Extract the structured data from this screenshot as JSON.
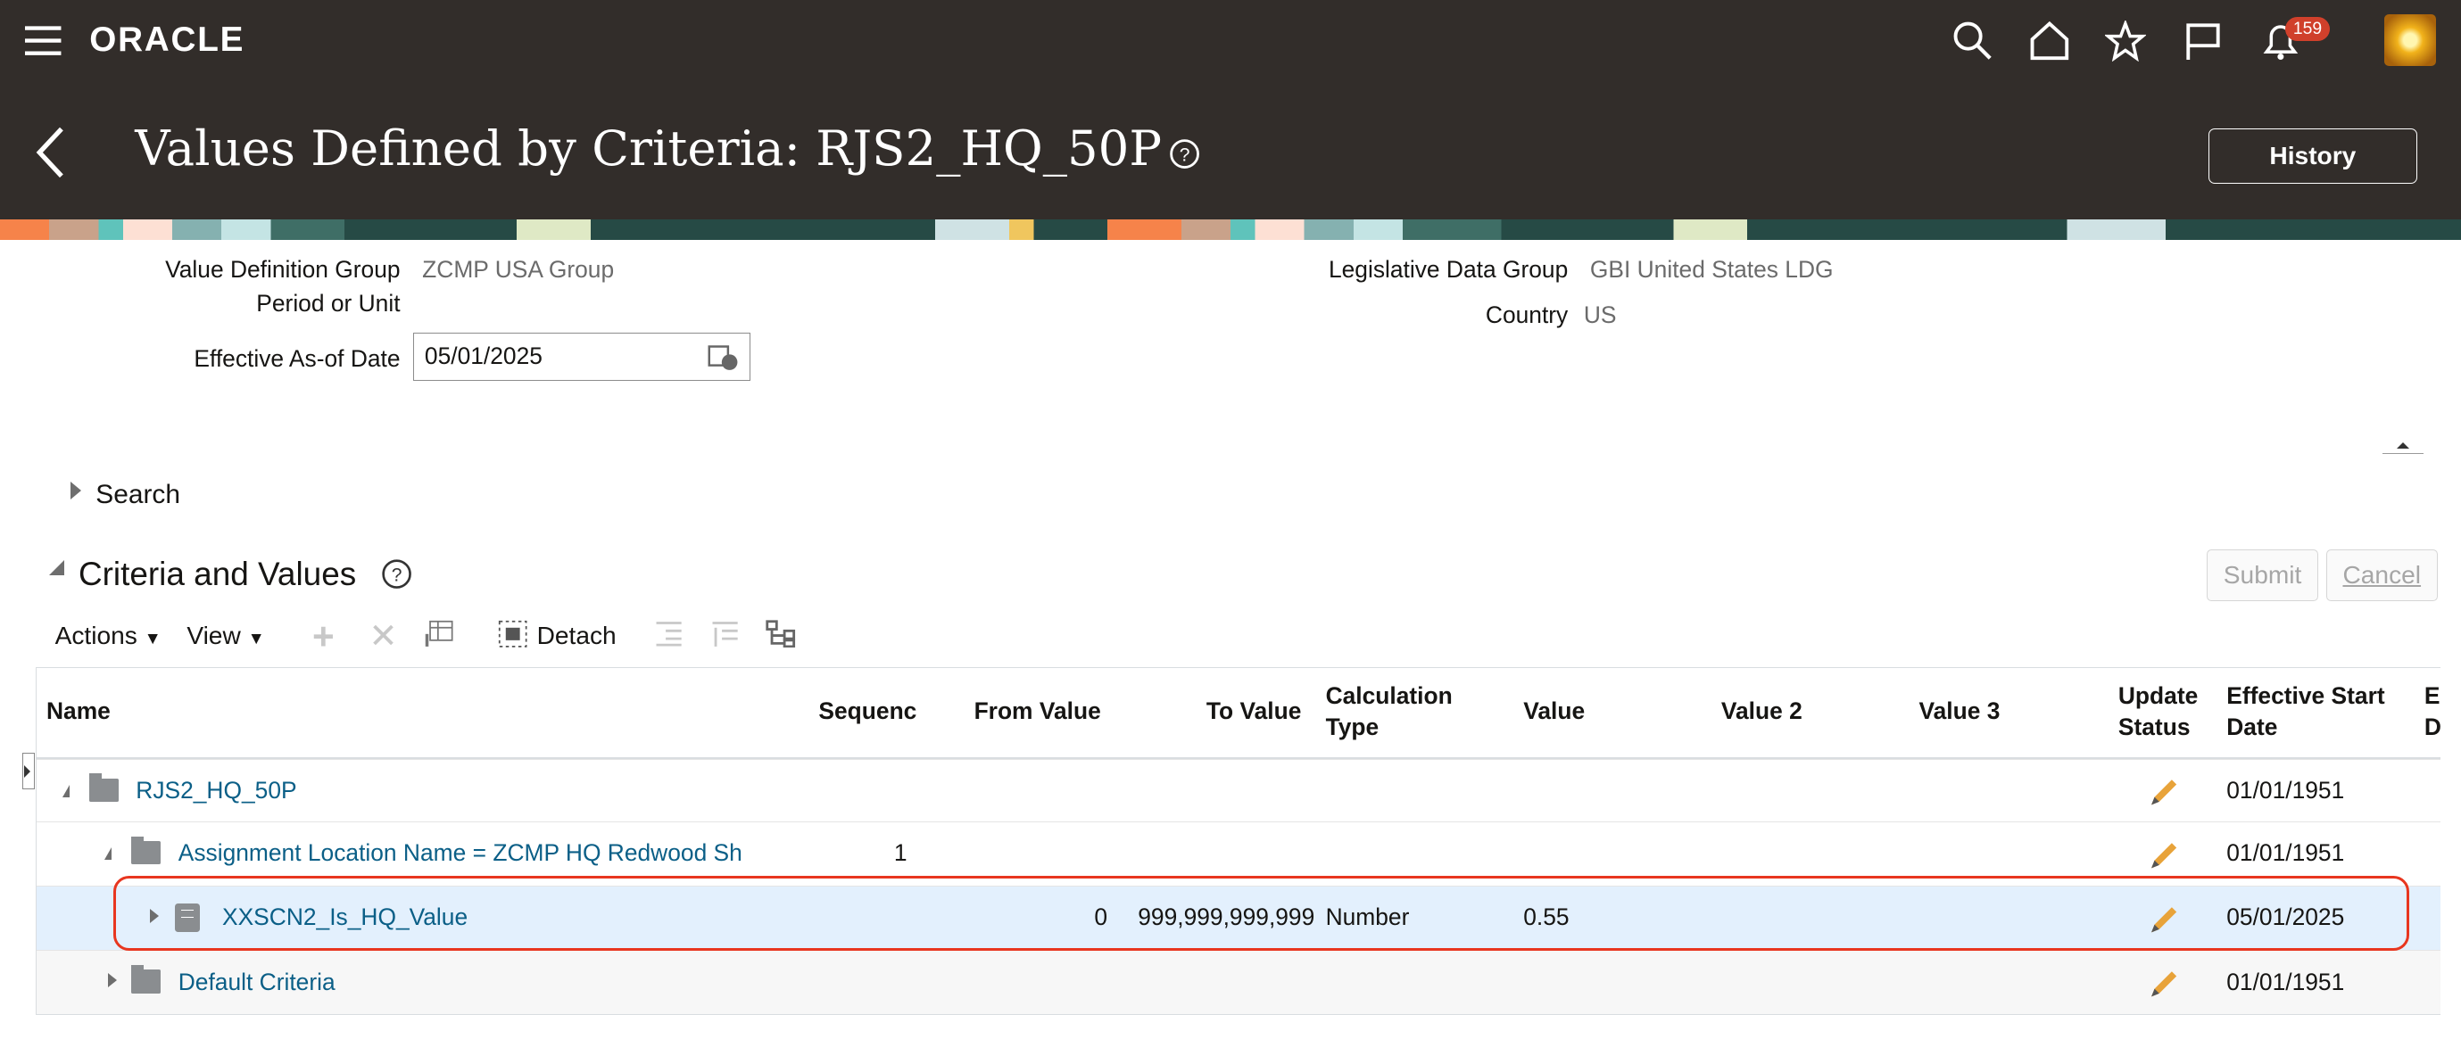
{
  "header": {
    "brand": "ORACLE",
    "notification_count": "159",
    "icons": [
      "menu-icon",
      "search-icon",
      "home-icon",
      "star-icon",
      "flag-icon",
      "bell-icon"
    ]
  },
  "page": {
    "title": "Values Defined by Criteria: RJS2_HQ_50P",
    "history_label": "History"
  },
  "form": {
    "value_definition_group_label": "Value Definition Group",
    "value_definition_group": "ZCMP USA Group",
    "period_or_unit_label": "Period or Unit",
    "effective_date_label": "Effective As-of Date",
    "effective_date": "05/01/2025",
    "ldg_label": "Legislative Data Group",
    "ldg": "GBI United States LDG",
    "country_label": "Country",
    "country": "US"
  },
  "search": {
    "label": "Search"
  },
  "section": {
    "title": "Criteria and Values",
    "submit": "Submit",
    "cancel": "Cancel"
  },
  "toolbar": {
    "actions": "Actions",
    "view": "View",
    "detach": "Detach"
  },
  "table": {
    "columns": [
      "Name",
      "Sequenc",
      "From Value",
      "To Value",
      "Calculation",
      "Type",
      "Value",
      "Value 2",
      "Value 3",
      "Update",
      "Status",
      "Effective Start",
      "Date",
      "E",
      "D"
    ],
    "rows": [
      {
        "name": "RJS2_HQ_50P",
        "sequence": "",
        "from": "",
        "to": "",
        "calc": "",
        "value": "",
        "start": "01/01/1951"
      },
      {
        "name": "Assignment Location Name = ZCMP HQ Redwood Sh",
        "sequence": "1",
        "from": "",
        "to": "",
        "calc": "",
        "value": "",
        "start": "01/01/1951"
      },
      {
        "name": "XXSCN2_Is_HQ_Value",
        "sequence": "",
        "from": "0",
        "to": "999,999,999,999",
        "calc": "Number",
        "value": "0.55",
        "start": "05/01/2025"
      },
      {
        "name": "Default Criteria",
        "sequence": "",
        "from": "",
        "to": "",
        "calc": "",
        "value": "",
        "start": "01/01/1951"
      }
    ],
    "selected_row": 2
  },
  "colors": {
    "header_bg": "#322d2a",
    "link": "#0b5f87",
    "selected_row": "#e3f0fd",
    "highlight_box": "#e8361f",
    "badge": "#d0402b"
  }
}
